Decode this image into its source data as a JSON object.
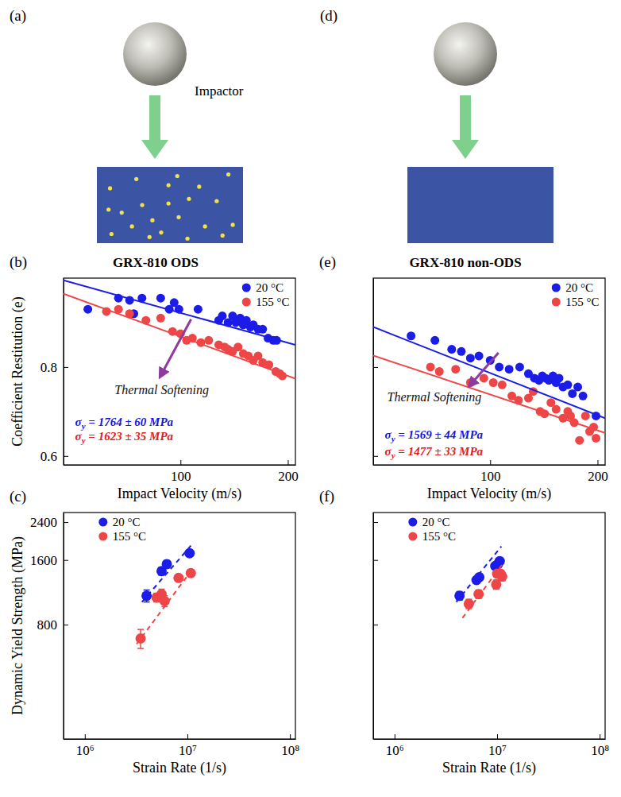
{
  "chart_data": [
    {
      "type": "diagram",
      "panel_label": "(a)",
      "label": "Impactor"
    },
    {
      "type": "scatter",
      "panel_label": "(b)",
      "title": "GRX-810 ODS",
      "xlabel": "Impact Velocity (m/s)",
      "ylabel": "Coefficient Restitution (e)",
      "xlim": [
        47,
        210
      ],
      "ylim": [
        0.58,
        1.0
      ],
      "xticks": [
        100,
        200
      ],
      "yticks": [
        0.6,
        0.8
      ],
      "log": "x",
      "legend": "top-right",
      "series": [
        {
          "name": "20 °C",
          "color": "#1c1ce8",
          "marker": "circle",
          "x": [
            55,
            67,
            72,
            78,
            74,
            88,
            93,
            96,
            99,
            112,
            128,
            131,
            136,
            140,
            143,
            147,
            150,
            153,
            157,
            160,
            165,
            170,
            176,
            182,
            186
          ],
          "values": [
            0.93,
            0.955,
            0.95,
            0.955,
            0.92,
            0.955,
            0.93,
            0.945,
            0.93,
            0.93,
            0.905,
            0.915,
            0.9,
            0.915,
            0.9,
            0.91,
            0.895,
            0.905,
            0.89,
            0.895,
            0.885,
            0.885,
            0.865,
            0.86,
            0.86
          ]
        },
        {
          "name": "155 °C",
          "color": "#ee4646",
          "marker": "circle",
          "x": [
            62,
            67,
            72,
            80,
            88,
            95,
            100,
            104,
            108,
            114,
            120,
            128,
            133,
            136,
            140,
            145,
            150,
            155,
            160,
            165,
            170,
            177,
            185,
            190,
            193
          ],
          "values": [
            0.925,
            0.93,
            0.92,
            0.905,
            0.91,
            0.88,
            0.875,
            0.86,
            0.865,
            0.855,
            0.86,
            0.85,
            0.845,
            0.84,
            0.835,
            0.845,
            0.83,
            0.825,
            0.815,
            0.825,
            0.81,
            0.805,
            0.79,
            0.785,
            0.78
          ]
        },
        {
          "type": "line",
          "line_style": "solid",
          "color": "#1c1ce8",
          "x": [
            47,
            210
          ],
          "values": [
            0.995,
            0.85
          ]
        },
        {
          "type": "line",
          "line_style": "solid",
          "color": "#ee4646",
          "x": [
            47,
            210
          ],
          "values": [
            0.965,
            0.774
          ]
        }
      ],
      "annotations": [
        {
          "text": "Thermal Softening"
        },
        {
          "text": "σy = 1764 ± 60 MPa",
          "color": "#1515e0"
        },
        {
          "text": "σy = 1623 ± 35 MPa",
          "color": "#e02020"
        }
      ]
    },
    {
      "type": "scatter",
      "panel_label": "(c)",
      "xlabel": "Strain Rate (1/s)",
      "ylabel": "Dynamic Yield Strength (MPa)",
      "xlim": [
        620000,
        113000000
      ],
      "ylim": [
        235,
        2660
      ],
      "xticks": [
        {
          "value": 1000000,
          "label": "10⁶"
        },
        {
          "value": 10000000,
          "label": "10⁷"
        },
        {
          "value": 100000000,
          "label": "10⁸"
        }
      ],
      "yticks": [
        800,
        1600,
        2400
      ],
      "log": true,
      "legend": "top-left",
      "series": [
        {
          "name": "20 °C",
          "color": "#1c1ce8",
          "marker": "circle",
          "x": [
            4000000,
            5600000,
            6300000,
            10500000
          ],
          "values": [
            1090,
            1420,
            1530,
            1720
          ],
          "errors": [
            70,
            60,
            60,
            50
          ]
        },
        {
          "name": "155 °C",
          "color": "#ee4646",
          "marker": "circle",
          "x": [
            3500000,
            5000000,
            5600000,
            6000000,
            8200000,
            10800000
          ],
          "values": [
            690,
            1070,
            1110,
            1030,
            1320,
            1390
          ],
          "errors": [
            70,
            50,
            60,
            60,
            40,
            50
          ]
        },
        {
          "type": "line",
          "line_style": "dashed",
          "color": "#1c1ce8",
          "x": [
            3600000,
            11200000
          ],
          "values": [
            1020,
            1900
          ]
        },
        {
          "type": "line",
          "line_style": "dashed",
          "color": "#ee4646",
          "x": [
            3200000,
            11200000
          ],
          "values": [
            650,
            1450
          ]
        }
      ]
    },
    {
      "type": "diagram",
      "panel_label": "(d)"
    },
    {
      "type": "scatter",
      "panel_label": "(e)",
      "title": "GRX-810 non-ODS",
      "xlabel": "Impact Velocity (m/s)",
      "xlim": [
        47,
        210
      ],
      "ylim": [
        0.58,
        1.0
      ],
      "xticks": [
        100,
        200
      ],
      "yticks": [
        0.6,
        0.8
      ],
      "log": "x",
      "legend": "top-right",
      "tick_labels": "x",
      "series": [
        {
          "name": "20 °C",
          "color": "#1c1ce8",
          "marker": "circle",
          "x": [
            60,
            70,
            78,
            83,
            88,
            93,
            100,
            106,
            113,
            121,
            128,
            133,
            137,
            140,
            143,
            146,
            150,
            153,
            156,
            160,
            165,
            170,
            176,
            182,
            198
          ],
          "values": [
            0.87,
            0.86,
            0.84,
            0.835,
            0.82,
            0.825,
            0.815,
            0.8,
            0.795,
            0.8,
            0.785,
            0.775,
            0.77,
            0.78,
            0.775,
            0.77,
            0.78,
            0.765,
            0.775,
            0.755,
            0.76,
            0.74,
            0.755,
            0.735,
            0.69
          ]
        },
        {
          "name": "155 °C",
          "color": "#ee4646",
          "marker": "circle",
          "x": [
            68,
            72,
            80,
            88,
            96,
            102,
            108,
            115,
            120,
            128,
            132,
            138,
            142,
            148,
            153,
            160,
            165,
            168,
            172,
            178,
            185,
            190,
            195,
            198
          ],
          "values": [
            0.8,
            0.79,
            0.795,
            0.765,
            0.775,
            0.765,
            0.76,
            0.735,
            0.725,
            0.73,
            0.745,
            0.7,
            0.695,
            0.72,
            0.705,
            0.685,
            0.7,
            0.69,
            0.675,
            0.635,
            0.69,
            0.655,
            0.665,
            0.64
          ]
        },
        {
          "type": "line",
          "line_style": "solid",
          "color": "#1c1ce8",
          "x": [
            47,
            210
          ],
          "values": [
            0.89,
            0.685
          ]
        },
        {
          "type": "line",
          "line_style": "solid",
          "color": "#ee4646",
          "x": [
            47,
            210
          ],
          "values": [
            0.826,
            0.652
          ]
        }
      ],
      "annotations": [
        {
          "text": "Thermal Softening"
        },
        {
          "text": "σy = 1569 ± 44 MPa",
          "color": "#1515e0"
        },
        {
          "text": "σy = 1477 ± 33 MPa",
          "color": "#e02020"
        }
      ]
    },
    {
      "type": "scatter",
      "panel_label": "(f)",
      "xlabel": "Strain Rate (1/s)",
      "xlim": [
        620000,
        113000000
      ],
      "ylim": [
        235,
        2660
      ],
      "xticks": [
        {
          "value": 1000000,
          "label": "10⁶"
        },
        {
          "value": 10000000,
          "label": "10⁷"
        },
        {
          "value": 100000000,
          "label": "10⁸"
        }
      ],
      "yticks": [
        800,
        1600,
        2400
      ],
      "log": true,
      "legend": "top-left",
      "tick_labels": "x",
      "series": [
        {
          "name": "20 °C",
          "color": "#1c1ce8",
          "marker": "circle",
          "x": [
            4300000,
            6300000,
            6700000,
            9600000,
            10200000,
            10600000
          ],
          "values": [
            1090,
            1290,
            1330,
            1500,
            1530,
            1580
          ],
          "errors": [
            50,
            40,
            40,
            40,
            40,
            30
          ]
        },
        {
          "name": "155 °C",
          "color": "#ee4646",
          "marker": "circle",
          "x": [
            5300000,
            6600000,
            9800000,
            10000000,
            10800000,
            11200000
          ],
          "values": [
            1000,
            1110,
            1230,
            1380,
            1380,
            1340
          ],
          "errors": [
            50,
            50,
            60,
            40,
            50,
            60
          ]
        },
        {
          "type": "line",
          "line_style": "dashed",
          "color": "#1c1ce8",
          "x": [
            4000000,
            11000000
          ],
          "values": [
            1020,
            1850
          ]
        },
        {
          "type": "line",
          "line_style": "dashed",
          "color": "#ee4646",
          "x": [
            4600000,
            11500000
          ],
          "values": [
            860,
            1550
          ]
        }
      ]
    }
  ]
}
